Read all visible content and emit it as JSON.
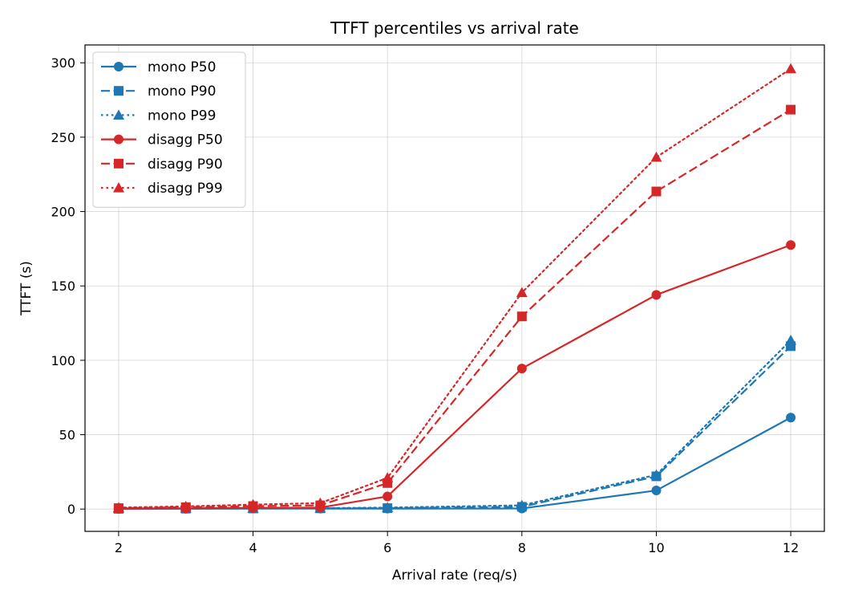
{
  "chart_data": {
    "type": "line",
    "title": "TTFT percentiles vs arrival rate",
    "xlabel": "Arrival rate (req/s)",
    "ylabel": "TTFT (s)",
    "xlim": [
      1.5,
      12.5
    ],
    "ylim": [
      -15,
      312
    ],
    "xticks": [
      2,
      4,
      6,
      8,
      10,
      12
    ],
    "yticks": [
      0,
      50,
      100,
      150,
      200,
      250,
      300
    ],
    "grid": true,
    "legend_position": "top-left",
    "x": [
      2,
      3,
      4,
      5,
      6,
      8,
      10,
      12
    ],
    "series": [
      {
        "name": "mono P50",
        "color": "#1f77b4",
        "linestyle": "solid",
        "marker": "circle",
        "values": [
          0.1,
          0.2,
          0.3,
          0.3,
          0.3,
          0.4,
          12.5,
          61.5
        ]
      },
      {
        "name": "mono P90",
        "color": "#1f77b4",
        "linestyle": "dashed",
        "marker": "square",
        "values": [
          0.2,
          0.3,
          0.4,
          0.5,
          0.6,
          1.5,
          22.0,
          109.5
        ]
      },
      {
        "name": "mono P99",
        "color": "#1f77b4",
        "linestyle": "dotted",
        "marker": "triangle",
        "values": [
          0.3,
          0.4,
          0.5,
          0.6,
          1.0,
          2.5,
          23.0,
          113.5
        ]
      },
      {
        "name": "disagg P50",
        "color": "#d62728",
        "linestyle": "solid",
        "marker": "circle",
        "values": [
          0.3,
          0.5,
          0.8,
          1.0,
          8.5,
          94.5,
          144.0,
          177.5
        ]
      },
      {
        "name": "disagg P90",
        "color": "#d62728",
        "linestyle": "dashed",
        "marker": "square",
        "values": [
          0.6,
          1.2,
          2.0,
          2.5,
          17.5,
          129.5,
          213.5,
          268.5
        ]
      },
      {
        "name": "disagg P99",
        "color": "#d62728",
        "linestyle": "dotted",
        "marker": "triangle",
        "values": [
          1.0,
          1.8,
          3.0,
          4.0,
          21.0,
          145.5,
          236.5,
          296.0
        ]
      }
    ]
  }
}
